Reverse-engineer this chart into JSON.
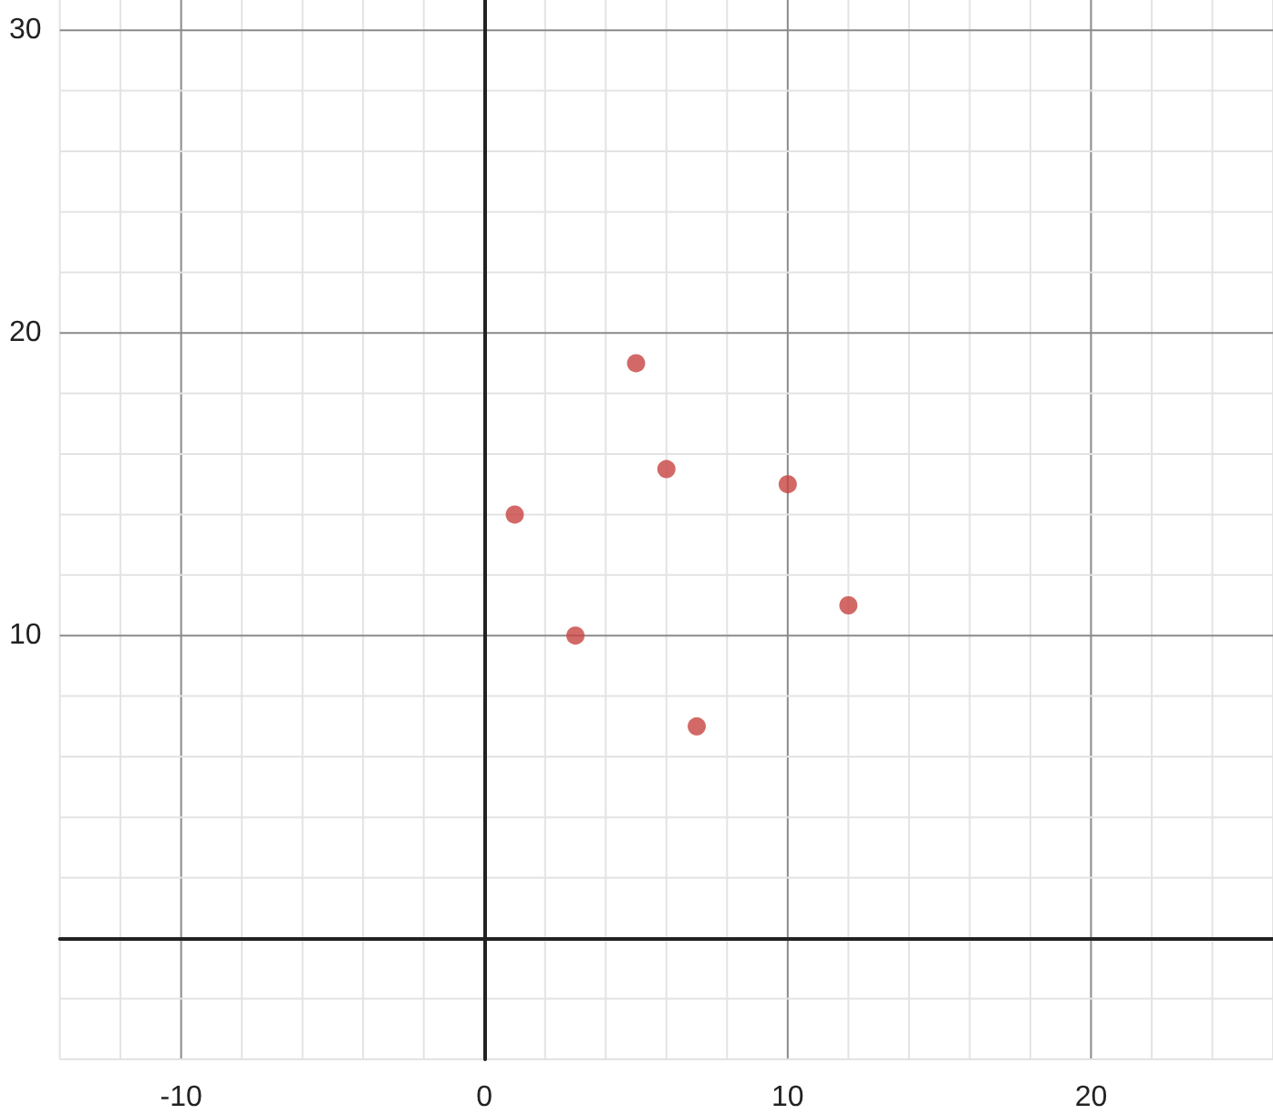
{
  "chart_data": {
    "type": "scatter",
    "x": [
      1,
      3,
      5,
      6,
      7,
      10,
      12
    ],
    "values": [
      14,
      10,
      19,
      15.5,
      7,
      15,
      11
    ],
    "color": "#c74440",
    "marker": "circle",
    "grid": true,
    "xlim": [
      -14,
      26
    ],
    "ylim": [
      -4,
      31
    ],
    "xticks": [
      -10,
      0,
      10,
      20
    ],
    "yticks": [
      {
        "value": 0,
        "label": null
      },
      10,
      20,
      30
    ]
  }
}
